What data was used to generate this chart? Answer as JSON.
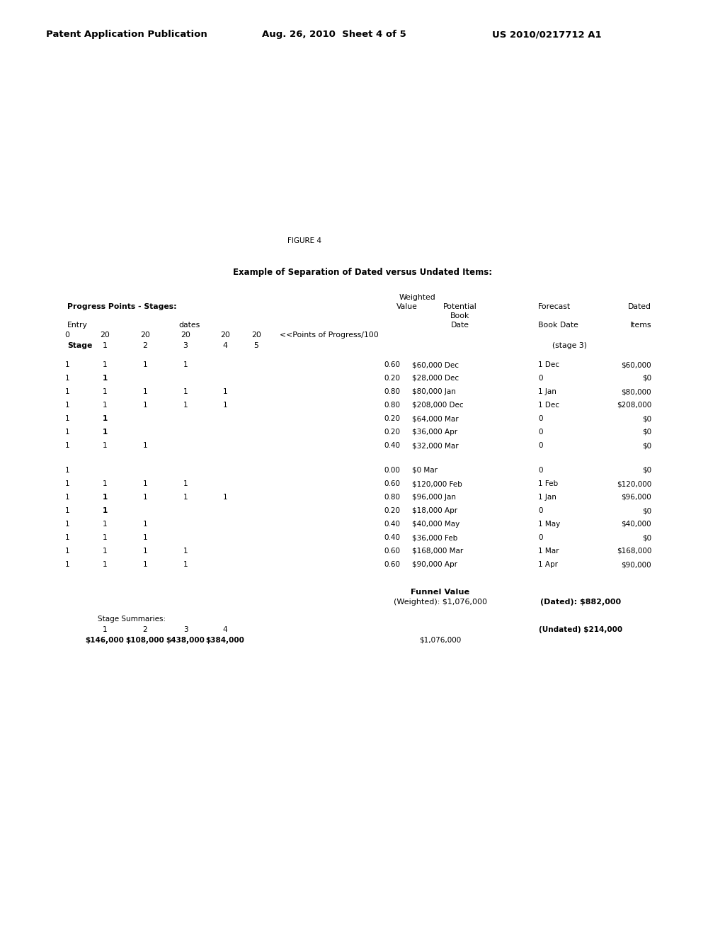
{
  "header_left": "Patent Application Publication",
  "header_mid": "Aug. 26, 2010  Sheet 4 of 5",
  "header_right": "US 2010/0217712 A1",
  "figure_label": "FIGURE 4",
  "section_title": "Example of Separation of Dated versus Undated Items:",
  "data_rows_group1": [
    {
      "e": "1",
      "s1": "1",
      "s2": "1",
      "s3": "1",
      "s4": "",
      "s5": "",
      "wv": "0.60",
      "pot": "$60,000 Dec",
      "fc": "1 Dec",
      "dated": "$60,000",
      "bold_s1": false
    },
    {
      "e": "1",
      "s1": "1",
      "s2": "",
      "s3": "",
      "s4": "",
      "s5": "",
      "wv": "0.20",
      "pot": "$28,000 Dec",
      "fc": "0",
      "dated": "$0",
      "bold_s1": true
    },
    {
      "e": "1",
      "s1": "1",
      "s2": "1",
      "s3": "1",
      "s4": "1",
      "s5": "",
      "wv": "0.80",
      "pot": "$80,000 Jan",
      "fc": "1 Jan",
      "dated": "$80,000",
      "bold_s1": false
    },
    {
      "e": "1",
      "s1": "1",
      "s2": "1",
      "s3": "1",
      "s4": "1",
      "s5": "",
      "wv": "0.80",
      "pot": "$208,000 Dec",
      "fc": "1 Dec",
      "dated": "$208,000",
      "bold_s1": false
    },
    {
      "e": "1",
      "s1": "1",
      "s2": "",
      "s3": "",
      "s4": "",
      "s5": "",
      "wv": "0.20",
      "pot": "$64,000 Mar",
      "fc": "0",
      "dated": "$0",
      "bold_s1": true
    },
    {
      "e": "1",
      "s1": "1",
      "s2": "",
      "s3": "",
      "s4": "",
      "s5": "",
      "wv": "0.20",
      "pot": "$36,000 Apr",
      "fc": "0",
      "dated": "$0",
      "bold_s1": true
    },
    {
      "e": "1",
      "s1": "1",
      "s2": "1",
      "s3": "",
      "s4": "",
      "s5": "",
      "wv": "0.40",
      "pot": "$32,000 Mar",
      "fc": "0",
      "dated": "$0",
      "bold_s1": false
    }
  ],
  "data_rows_group2": [
    {
      "e": "1",
      "s1": "",
      "s2": "",
      "s3": "",
      "s4": "",
      "s5": "",
      "wv": "0.00",
      "pot": "$0 Mar",
      "fc": "0",
      "dated": "$0",
      "bold_s1": false
    },
    {
      "e": "1",
      "s1": "1",
      "s2": "1",
      "s3": "1",
      "s4": "",
      "s5": "",
      "wv": "0.60",
      "pot": "$120,000 Feb",
      "fc": "1 Feb",
      "dated": "$120,000",
      "bold_s1": false
    },
    {
      "e": "1",
      "s1": "1",
      "s2": "1",
      "s3": "1",
      "s4": "1",
      "s5": "",
      "wv": "0.80",
      "pot": "$96,000 Jan",
      "fc": "1 Jan",
      "dated": "$96,000",
      "bold_s1": true
    },
    {
      "e": "1",
      "s1": "1",
      "s2": "",
      "s3": "",
      "s4": "",
      "s5": "",
      "wv": "0.20",
      "pot": "$18,000 Apr",
      "fc": "0",
      "dated": "$0",
      "bold_s1": true
    },
    {
      "e": "1",
      "s1": "1",
      "s2": "1",
      "s3": "",
      "s4": "",
      "s5": "",
      "wv": "0.40",
      "pot": "$40,000 May",
      "fc": "1 May",
      "dated": "$40,000",
      "bold_s1": false
    },
    {
      "e": "1",
      "s1": "1",
      "s2": "1",
      "s3": "",
      "s4": "",
      "s5": "",
      "wv": "0.40",
      "pot": "$36,000 Feb",
      "fc": "0",
      "dated": "$0",
      "bold_s1": false
    },
    {
      "e": "1",
      "s1": "1",
      "s2": "1",
      "s3": "1",
      "s4": "",
      "s5": "",
      "wv": "0.60",
      "pot": "$168,000 Mar",
      "fc": "1 Mar",
      "dated": "$168,000",
      "bold_s1": false
    },
    {
      "e": "1",
      "s1": "1",
      "s2": "1",
      "s3": "1",
      "s4": "",
      "s5": "",
      "wv": "0.60",
      "pot": "$90,000 Apr",
      "fc": "1 Apr",
      "dated": "$90,000",
      "bold_s1": false
    }
  ]
}
